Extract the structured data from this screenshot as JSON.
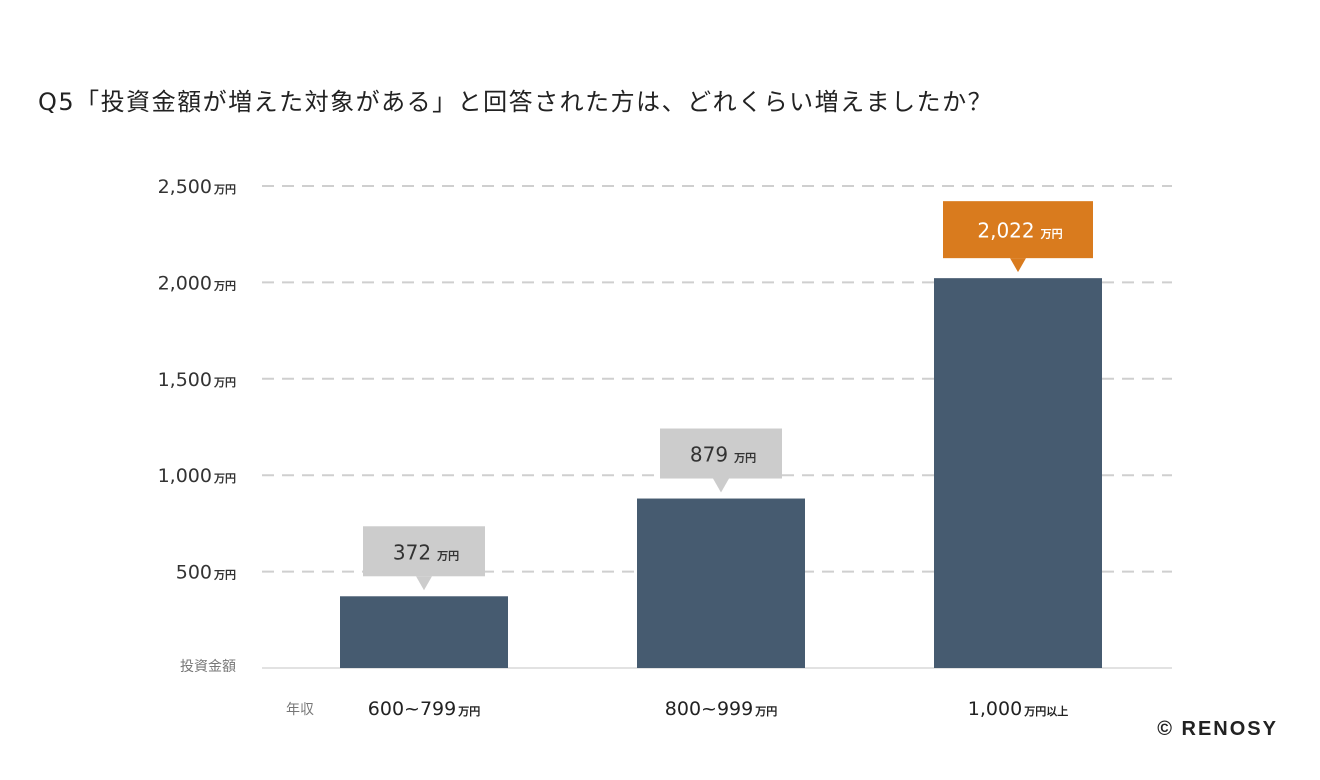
{
  "chart_data": {
    "type": "bar",
    "title": "Q5「投資金額が増えた対象がある」と回答された方は、どれくらい増えましたか？",
    "ylabel": "投資金額",
    "xlabel": "年収",
    "unit": "万円",
    "categories": [
      {
        "main": "600~799",
        "suffix": "万円"
      },
      {
        "main": "800~999",
        "suffix": "万円"
      },
      {
        "main": "1,000",
        "suffix": "万円以上"
      }
    ],
    "values": [
      372,
      879,
      2022
    ],
    "value_labels": [
      "372",
      "879",
      "2,022"
    ],
    "ylim": [
      0,
      2500
    ],
    "yticks": [
      {
        "value": 500,
        "label": "500"
      },
      {
        "value": 1000,
        "label": "1,000"
      },
      {
        "value": 1500,
        "label": "1,500"
      },
      {
        "value": 2000,
        "label": "2,000"
      },
      {
        "value": 2500,
        "label": "2,500"
      }
    ],
    "grid": true,
    "colors": {
      "bar": "#465B70",
      "callout": "#CCCCCC",
      "highlight": "#D97B1E",
      "grid": "#CFCFCF"
    },
    "highlight_index": 2
  },
  "copyright": "© RENOSY"
}
